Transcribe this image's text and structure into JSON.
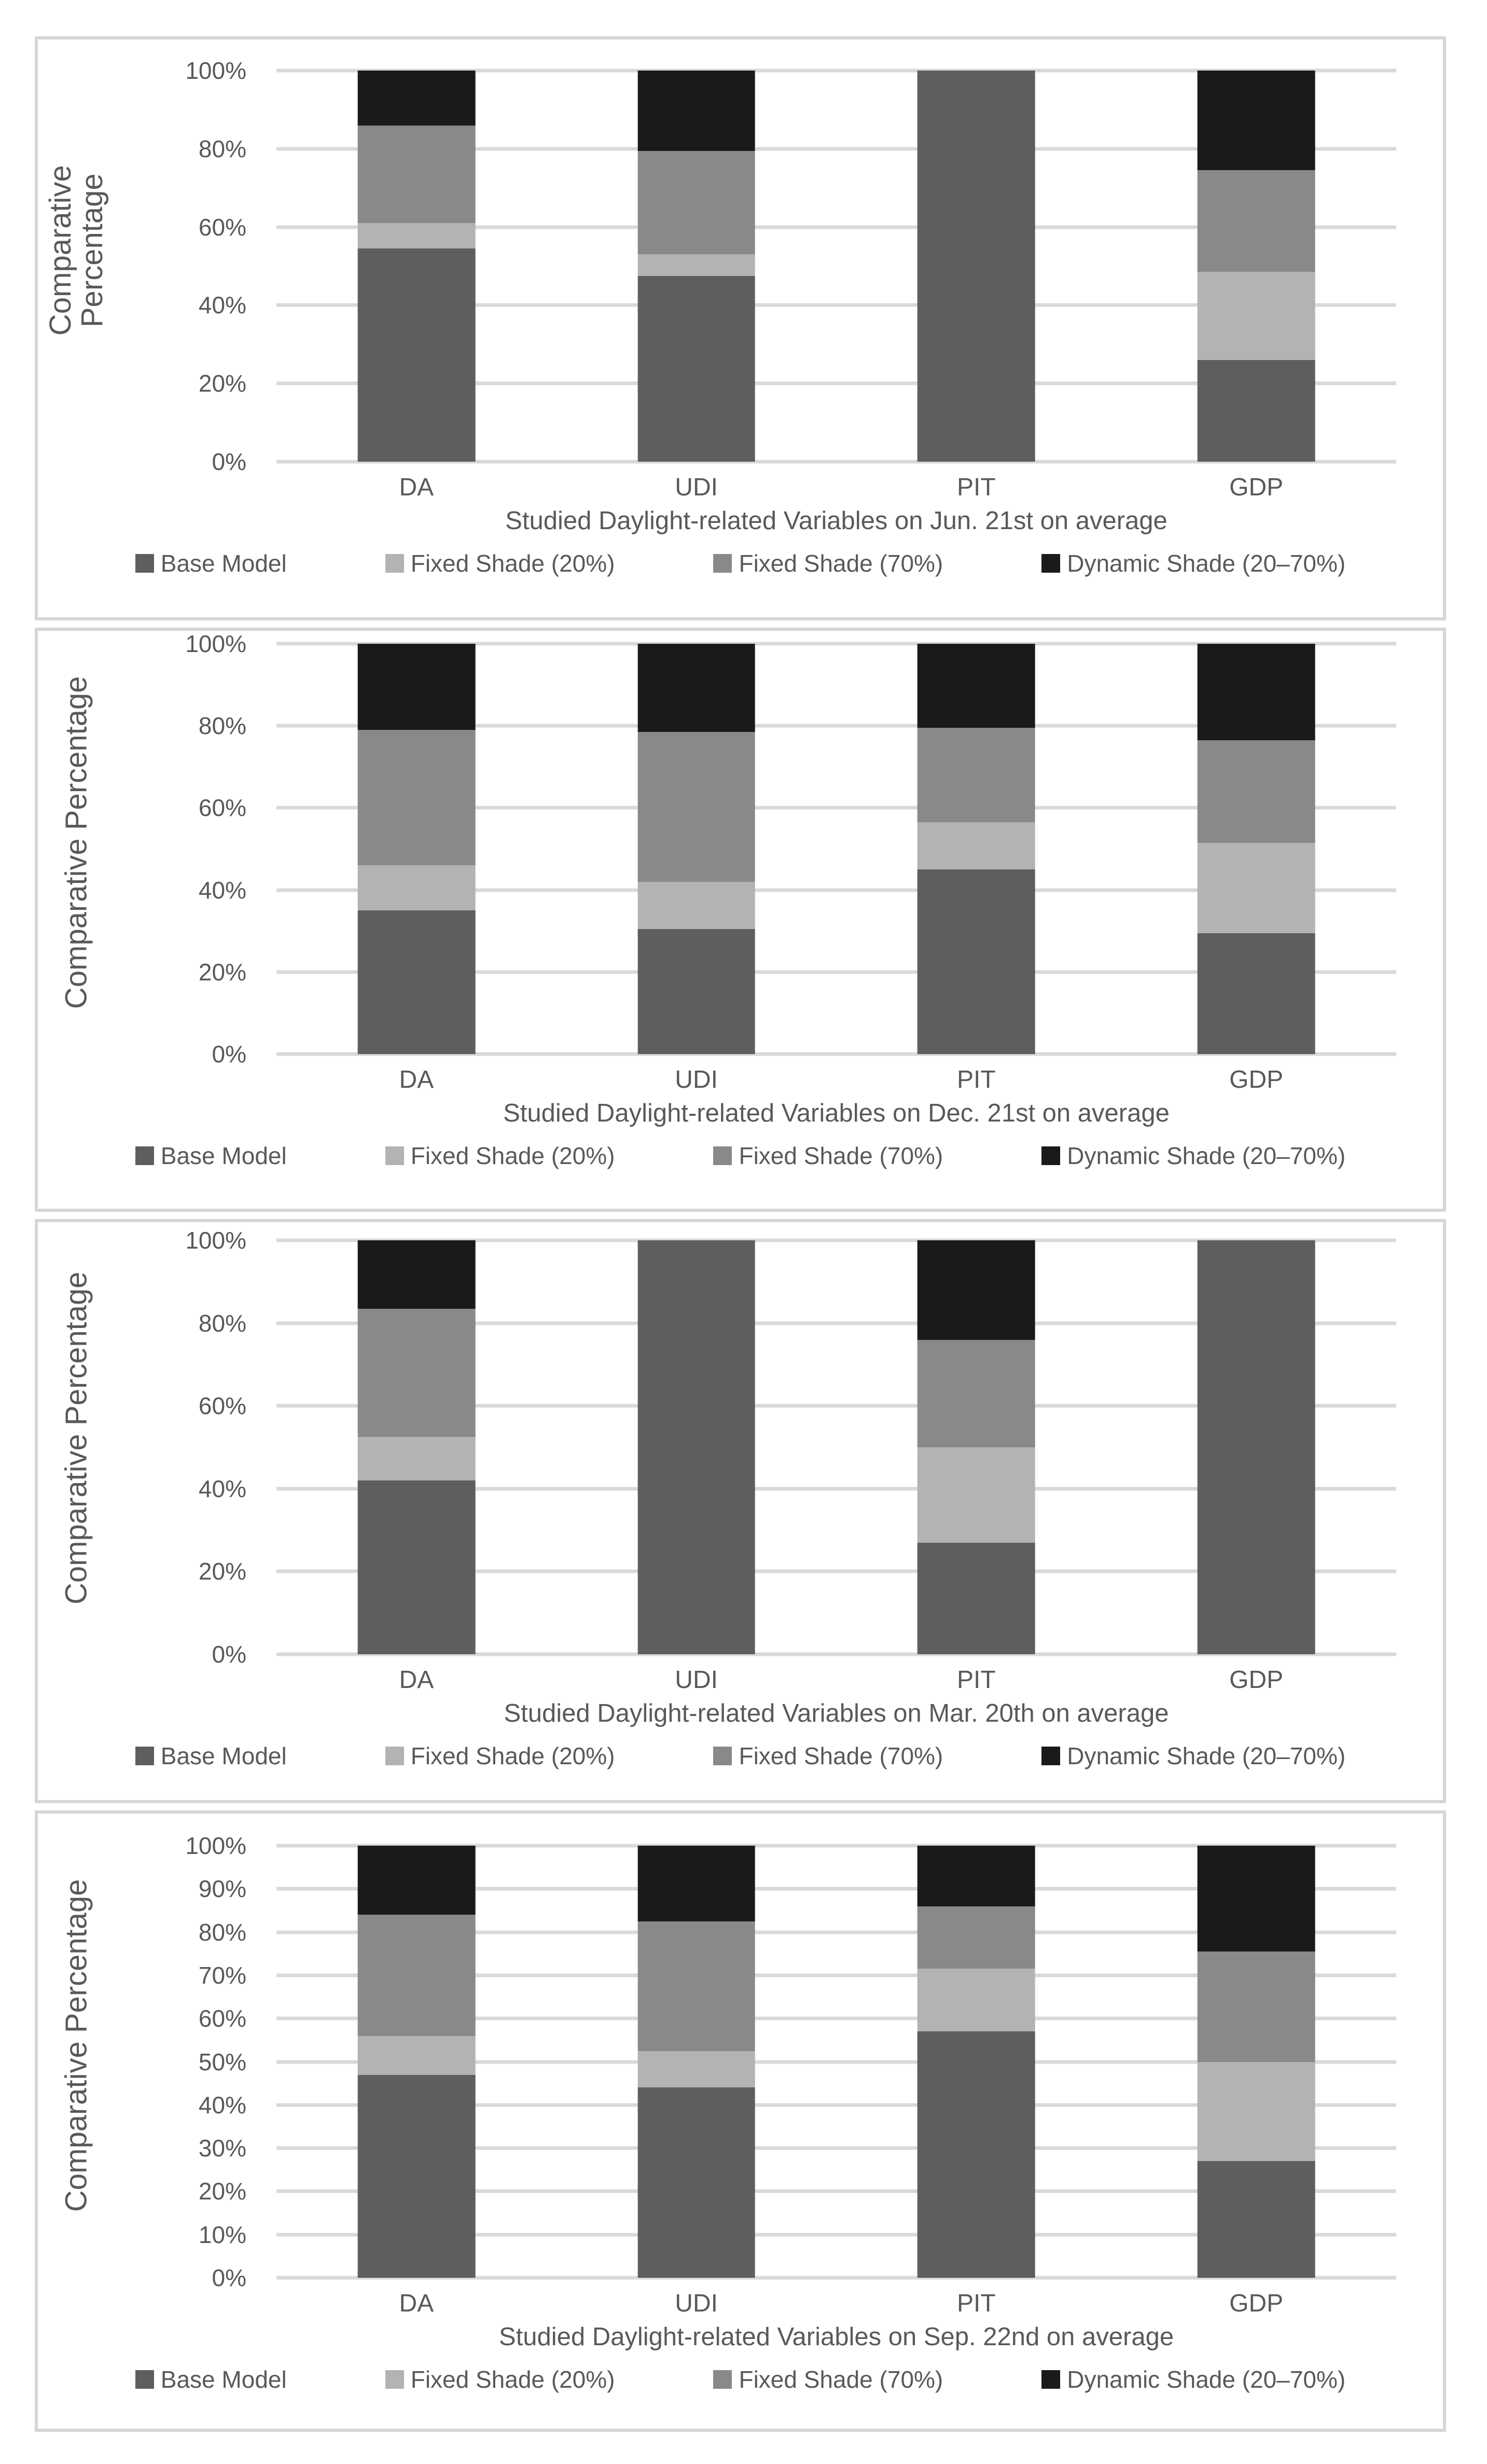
{
  "chart_data": [
    {
      "type": "bar",
      "stacked": true,
      "unit": "percent",
      "ylim": [
        0,
        100
      ],
      "grid": true,
      "legend_position": "bottom",
      "y_axis_title": "Comparative\nPercentage",
      "x_axis_title": "Studied Daylight-related Variables on Jun. 21st on average",
      "categories": [
        "DA",
        "UDI",
        "PIT",
        "GDP"
      ],
      "y_ticks": [
        "100%",
        "80%",
        "60%",
        "40%",
        "20%",
        "0%"
      ],
      "series": [
        {
          "name": "Base Model",
          "color": "#5e5e5e",
          "values": [
            54.5,
            47.5,
            100,
            26
          ]
        },
        {
          "name": "Fixed Shade (20%)",
          "color": "#b3b3b3",
          "values": [
            6.5,
            5.5,
            0,
            22.5
          ]
        },
        {
          "name": "Fixed Shade (70%)",
          "color": "#898989",
          "values": [
            25,
            26.5,
            0,
            26
          ]
        },
        {
          "name": "Dynamic Shade (20–70%)",
          "color": "#1a1a1a",
          "values": [
            14,
            20.5,
            0,
            25.5
          ]
        }
      ]
    },
    {
      "type": "bar",
      "stacked": true,
      "unit": "percent",
      "ylim": [
        0,
        100
      ],
      "grid": true,
      "legend_position": "bottom",
      "y_axis_title": "Comparative Percentage",
      "x_axis_title": "Studied Daylight-related Variables on Dec. 21st on average",
      "categories": [
        "DA",
        "UDI",
        "PIT",
        "GDP"
      ],
      "y_ticks": [
        "100%",
        "80%",
        "60%",
        "40%",
        "20%",
        "0%"
      ],
      "series": [
        {
          "name": "Base Model",
          "color": "#5e5e5e",
          "values": [
            35,
            30.5,
            45,
            29.5
          ]
        },
        {
          "name": "Fixed Shade (20%)",
          "color": "#b3b3b3",
          "values": [
            11,
            11.5,
            11.5,
            22
          ]
        },
        {
          "name": "Fixed Shade (70%)",
          "color": "#898989",
          "values": [
            33,
            36.5,
            23,
            25
          ]
        },
        {
          "name": "Dynamic Shade (20–70%)",
          "color": "#1a1a1a",
          "values": [
            21,
            21.5,
            20.5,
            23.5
          ]
        }
      ]
    },
    {
      "type": "bar",
      "stacked": true,
      "unit": "percent",
      "ylim": [
        0,
        100
      ],
      "grid": true,
      "legend_position": "bottom",
      "y_axis_title": "Comparative Percentage",
      "x_axis_title": "Studied Daylight-related Variables on Mar. 20th on average",
      "categories": [
        "DA",
        "UDI",
        "PIT",
        "GDP"
      ],
      "y_ticks": [
        "100%",
        "80%",
        "60%",
        "40%",
        "20%",
        "0%"
      ],
      "series": [
        {
          "name": "Base Model",
          "color": "#5e5e5e",
          "values": [
            42,
            100,
            27,
            100
          ]
        },
        {
          "name": "Fixed Shade (20%)",
          "color": "#b3b3b3",
          "values": [
            10.5,
            0,
            23,
            0
          ]
        },
        {
          "name": "Fixed Shade (70%)",
          "color": "#898989",
          "values": [
            31,
            0,
            26,
            0
          ]
        },
        {
          "name": "Dynamic Shade (20–70%)",
          "color": "#1a1a1a",
          "values": [
            16.5,
            0,
            24,
            0
          ]
        }
      ]
    },
    {
      "type": "bar",
      "stacked": true,
      "unit": "percent",
      "ylim": [
        0,
        100
      ],
      "grid": true,
      "legend_position": "bottom",
      "y_axis_title": "Comparative Percentage",
      "x_axis_title": "Studied Daylight-related Variables on Sep. 22nd on average",
      "categories": [
        "DA",
        "UDI",
        "PIT",
        "GDP"
      ],
      "y_ticks": [
        "100%",
        "90%",
        "80%",
        "70%",
        "60%",
        "50%",
        "40%",
        "30%",
        "20%",
        "10%",
        "0%"
      ],
      "series": [
        {
          "name": "Base Model",
          "color": "#5e5e5e",
          "values": [
            47,
            44,
            57,
            27
          ]
        },
        {
          "name": "Fixed Shade (20%)",
          "color": "#b3b3b3",
          "values": [
            9,
            8.5,
            14.5,
            23
          ]
        },
        {
          "name": "Fixed Shade (70%)",
          "color": "#898989",
          "values": [
            28,
            30,
            14.5,
            25.5
          ]
        },
        {
          "name": "Dynamic Shade (20–70%)",
          "color": "#1a1a1a",
          "values": [
            16,
            17.5,
            14,
            24.5
          ]
        }
      ]
    }
  ]
}
